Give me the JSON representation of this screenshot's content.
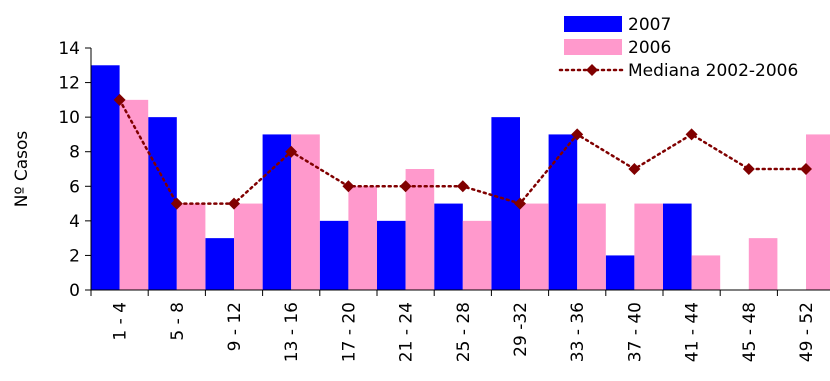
{
  "chart_data": {
    "type": "bar",
    "categories": [
      "1 - 4",
      "5 - 8",
      "9 - 12",
      "13 - 16",
      "17 - 20",
      "21 - 24",
      "25 - 28",
      "29 -32",
      "33 - 36",
      "37 - 40",
      "41 - 44",
      "45 - 48",
      "49 - 52"
    ],
    "series": [
      {
        "name": "2007",
        "kind": "bar",
        "color": "#0000ff",
        "values": [
          13,
          10,
          3,
          9,
          4,
          4,
          5,
          10,
          9,
          2,
          5,
          0,
          0
        ]
      },
      {
        "name": "2006",
        "kind": "bar",
        "color": "#ff99cc",
        "values": [
          11,
          5,
          5,
          9,
          6,
          7,
          4,
          5,
          5,
          5,
          2,
          3,
          9
        ]
      },
      {
        "name": "Mediana 2002-2006",
        "kind": "line",
        "color": "#800000",
        "line_style": "dotted",
        "marker": "diamond",
        "values": [
          11,
          5,
          5,
          8,
          6,
          6,
          6,
          5,
          9,
          7,
          9,
          7,
          7
        ]
      }
    ],
    "ylabel": "Nº Casos",
    "xlabel": "",
    "ylim": [
      0,
      14
    ],
    "yticks": [
      0,
      2,
      4,
      6,
      8,
      10,
      12,
      14
    ],
    "grid": false,
    "legend_position": "top-right"
  }
}
